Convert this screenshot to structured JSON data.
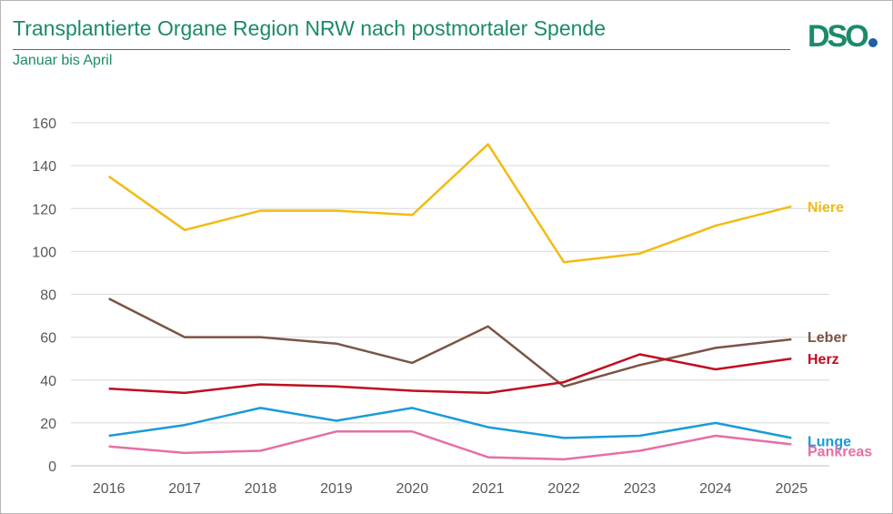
{
  "header": {
    "title": "Transplantierte Organe Region NRW nach postmortaler Spende",
    "subtitle": "Januar  bis April",
    "logo_text": "DSO"
  },
  "colors": {
    "title": "#1b8a6b",
    "logo_text": "#1b8a6b",
    "logo_dot": "#1f5fa8",
    "grid": "#d9d9d9",
    "axis": "#bfbfbf",
    "tick": "#595959"
  },
  "chart_data": {
    "type": "line",
    "title": "Transplantierte Organe Region NRW nach postmortaler Spende",
    "subtitle": "Januar  bis April",
    "xlabel": "",
    "ylabel": "",
    "x": [
      "2016",
      "2017",
      "2018",
      "2019",
      "2020",
      "2021",
      "2022",
      "2023",
      "2024",
      "2025"
    ],
    "ylim": [
      0,
      160
    ],
    "yticks": [
      0,
      20,
      40,
      60,
      80,
      100,
      120,
      140,
      160
    ],
    "grid": true,
    "legend": "labels at line ends",
    "series": [
      {
        "name": "Niere",
        "color": "#f2bb13",
        "values": [
          135,
          110,
          119,
          119,
          117,
          150,
          95,
          99,
          112,
          121
        ]
      },
      {
        "name": "Leber",
        "color": "#7b5446",
        "values": [
          78,
          60,
          60,
          57,
          48,
          65,
          37,
          47,
          55,
          59
        ]
      },
      {
        "name": "Herz",
        "color": "#c00d1e",
        "values": [
          36,
          34,
          38,
          37,
          35,
          34,
          39,
          52,
          45,
          50
        ]
      },
      {
        "name": "Lunge",
        "color": "#1a9bd7",
        "values": [
          14,
          19,
          27,
          21,
          27,
          18,
          13,
          14,
          20,
          13
        ]
      },
      {
        "name": "Pankreas",
        "color": "#e66fa5",
        "values": [
          9,
          6,
          7,
          16,
          16,
          4,
          3,
          7,
          14,
          10
        ]
      }
    ]
  }
}
